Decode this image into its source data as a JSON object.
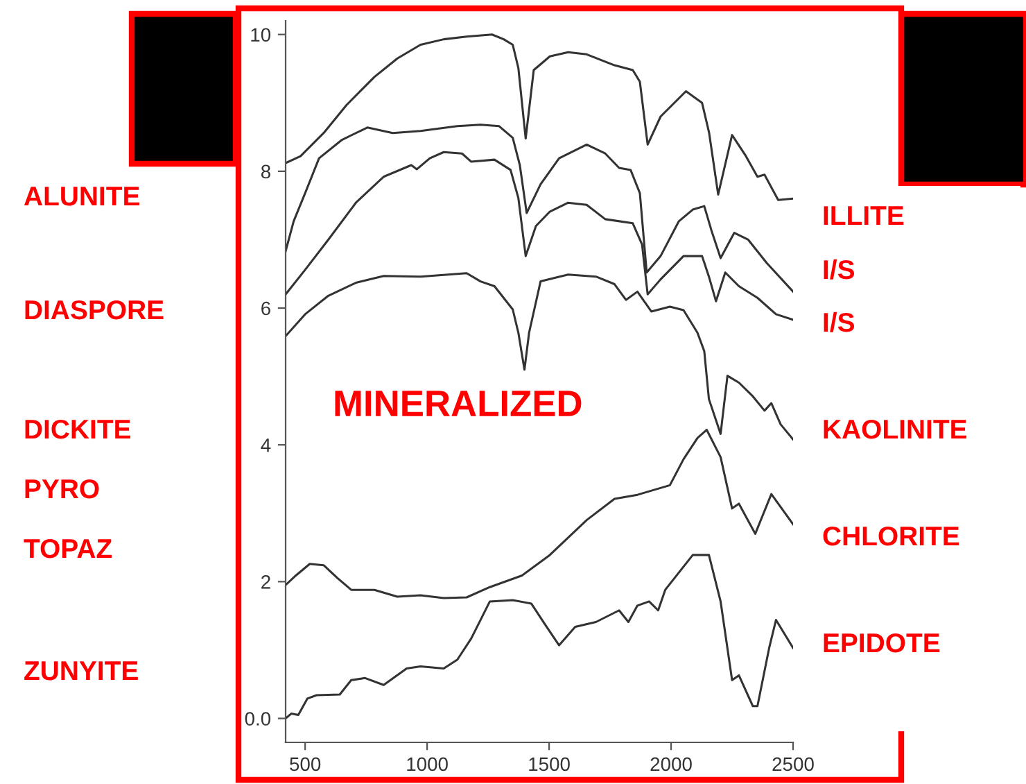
{
  "chart_data": {
    "type": "line",
    "xlim": [
      420,
      2500
    ],
    "ylim": [
      -0.35,
      10.2
    ],
    "xticks": [
      500,
      1000,
      1500,
      2000,
      2500
    ],
    "yticks": [
      {
        "value": 0,
        "label": "0.0"
      },
      2,
      4,
      6,
      8,
      10
    ],
    "grid": false,
    "legend": false,
    "marker": "none",
    "line_style": "solid",
    "annotations": [
      "ALUNITE",
      "DIASPORE",
      "DICKITE",
      "PYRO",
      "TOPAZ",
      "ZUNYITE",
      "MINERALIZED"
    ],
    "series": [
      {
        "name": "ILLITE",
        "color": "#333333",
        "x": [
          420,
          481,
          576,
          670,
          784,
          878,
          973,
          1068,
          1162,
          1266,
          1314,
          1351,
          1374,
          1404,
          1437,
          1503,
          1578,
          1654,
          1768,
          1843,
          1872,
          1904,
          1957,
          2061,
          2127,
          2156,
          2193,
          2250,
          2307,
          2354,
          2383,
          2439,
          2500
        ],
        "values": [
          8.12,
          8.22,
          8.56,
          8.97,
          9.38,
          9.65,
          9.85,
          9.93,
          9.97,
          10.0,
          9.93,
          9.85,
          9.51,
          8.48,
          9.48,
          9.68,
          9.74,
          9.71,
          9.55,
          9.48,
          9.31,
          8.39,
          8.8,
          9.17,
          9.0,
          8.56,
          7.66,
          8.53,
          8.22,
          7.92,
          7.95,
          7.58,
          7.6
        ]
      },
      {
        "name": "I/S",
        "color": "#333333",
        "x": [
          420,
          453,
          500,
          557,
          651,
          755,
          859,
          973,
          1124,
          1219,
          1295,
          1351,
          1380,
          1408,
          1465,
          1541,
          1654,
          1730,
          1787,
          1834,
          1872,
          1900,
          1957,
          2032,
          2089,
          2136,
          2165,
          2203,
          2259,
          2316,
          2392,
          2500
        ],
        "values": [
          6.83,
          7.27,
          7.68,
          8.19,
          8.46,
          8.64,
          8.56,
          8.59,
          8.66,
          8.68,
          8.66,
          8.49,
          8.09,
          7.39,
          7.81,
          8.19,
          8.39,
          8.26,
          8.05,
          8.02,
          7.68,
          6.52,
          6.76,
          7.27,
          7.44,
          7.49,
          7.14,
          6.73,
          7.1,
          7.0,
          6.66,
          6.24
        ]
      },
      {
        "name": "I/S",
        "color": "#333333",
        "x": [
          420,
          500,
          595,
          708,
          822,
          935,
          958,
          1011,
          1068,
          1143,
          1181,
          1276,
          1342,
          1374,
          1404,
          1446,
          1503,
          1578,
          1654,
          1730,
          1843,
          1881,
          1904,
          1957,
          2051,
          2127,
          2155,
          2184,
          2222,
          2278,
          2354,
          2430,
          2500
        ],
        "values": [
          6.2,
          6.56,
          7.0,
          7.54,
          7.92,
          8.09,
          8.03,
          8.19,
          8.28,
          8.26,
          8.14,
          8.17,
          8.02,
          7.61,
          6.76,
          7.2,
          7.41,
          7.54,
          7.51,
          7.3,
          7.24,
          6.93,
          6.2,
          6.42,
          6.76,
          6.76,
          6.46,
          6.1,
          6.52,
          6.32,
          6.15,
          5.91,
          5.83
        ]
      },
      {
        "name": "KAOLINITE",
        "color": "#333333",
        "x": [
          420,
          500,
          595,
          708,
          822,
          973,
          1087,
          1162,
          1219,
          1276,
          1351,
          1374,
          1399,
          1418,
          1465,
          1578,
          1692,
          1768,
          1815,
          1862,
          1919,
          1995,
          2051,
          2108,
          2136,
          2155,
          2203,
          2231,
          2278,
          2335,
          2383,
          2411,
          2449,
          2500
        ],
        "values": [
          5.59,
          5.91,
          6.18,
          6.37,
          6.47,
          6.46,
          6.49,
          6.51,
          6.39,
          6.32,
          5.98,
          5.64,
          5.1,
          5.64,
          6.39,
          6.49,
          6.46,
          6.35,
          6.12,
          6.24,
          5.95,
          6.02,
          5.97,
          5.64,
          5.37,
          4.67,
          4.16,
          5.01,
          4.91,
          4.71,
          4.5,
          4.61,
          4.3,
          4.08
        ]
      },
      {
        "name": "CHLORITE",
        "color": "#333333",
        "x": [
          420,
          462,
          519,
          576,
          633,
          689,
          784,
          878,
          973,
          1068,
          1162,
          1257,
          1389,
          1503,
          1654,
          1768,
          1862,
          1995,
          2051,
          2108,
          2146,
          2203,
          2250,
          2278,
          2345,
          2411,
          2500
        ],
        "values": [
          1.95,
          2.09,
          2.26,
          2.24,
          2.05,
          1.88,
          1.88,
          1.78,
          1.8,
          1.76,
          1.77,
          1.92,
          2.09,
          2.39,
          2.9,
          3.21,
          3.27,
          3.41,
          3.79,
          4.1,
          4.22,
          3.82,
          3.07,
          3.14,
          2.7,
          3.28,
          2.84
        ]
      },
      {
        "name": "EPIDOTE",
        "color": "#333333",
        "x": [
          420,
          443,
          472,
          509,
          547,
          642,
          689,
          746,
          822,
          916,
          973,
          1068,
          1124,
          1181,
          1257,
          1351,
          1427,
          1484,
          1541,
          1607,
          1692,
          1787,
          1825,
          1862,
          1910,
          1947,
          1976,
          2089,
          2155,
          2203,
          2250,
          2278,
          2335,
          2354,
          2402,
          2430,
          2500
        ],
        "values": [
          0.0,
          0.07,
          0.05,
          0.29,
          0.34,
          0.35,
          0.56,
          0.59,
          0.49,
          0.73,
          0.76,
          0.73,
          0.86,
          1.17,
          1.71,
          1.73,
          1.68,
          1.37,
          1.07,
          1.34,
          1.41,
          1.58,
          1.41,
          1.65,
          1.71,
          1.58,
          1.88,
          2.39,
          2.39,
          1.71,
          0.56,
          0.63,
          0.18,
          0.18,
          1.03,
          1.44,
          1.03
        ]
      }
    ]
  }
}
